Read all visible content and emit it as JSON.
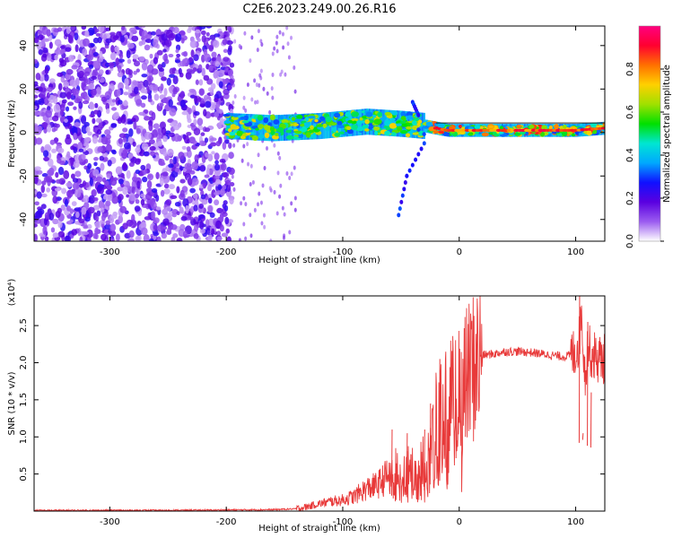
{
  "title": "C2E6.2023.249.00.26.R16",
  "chart_data": [
    {
      "type": "heatmap",
      "xlabel": "Height of straight line (km)",
      "ylabel": "Frequency (Hz)",
      "xlim": [
        -365,
        125
      ],
      "ylim": [
        -50,
        49
      ],
      "xticks": [
        -300,
        -200,
        -100,
        0,
        100
      ],
      "xtick_labels": [
        "-300",
        "-200",
        "-100",
        "0",
        "100"
      ],
      "yticks": [
        -40,
        -20,
        0,
        20,
        40
      ],
      "ytick_labels": [
        "-40",
        "-20",
        "0",
        "20",
        "40"
      ],
      "colorbar": {
        "label": "Normalized spectral amplitude",
        "range": [
          0.0,
          1.0
        ],
        "ticks": [
          0.0,
          0.2,
          0.4,
          0.6,
          0.8
        ],
        "tick_labels": [
          "0.0",
          "0.2",
          "0.4",
          "0.6",
          "0.8"
        ],
        "colormap": [
          "#ffffff",
          "#9b5cf0",
          "#5a00e0",
          "#1010ff",
          "#00a8ff",
          "#00e6d2",
          "#00e000",
          "#a0e000",
          "#ffd000",
          "#ff7000",
          "#ff0030",
          "#ff0080"
        ]
      },
      "regions": [
        {
          "name": "noise",
          "x_range": [
            -365,
            -195
          ],
          "freq_range": [
            -50,
            49
          ],
          "amplitude": [
            0.05,
            0.25
          ]
        },
        {
          "name": "signal-band",
          "x_range": [
            -200,
            125
          ],
          "center_freq": [
            3,
            2,
            3,
            5,
            4,
            3,
            1,
            1,
            1,
            1,
            2
          ],
          "center_x": [
            -200,
            -160,
            -120,
            -80,
            -50,
            -30,
            -10,
            20,
            60,
            100,
            125
          ],
          "amplitude": [
            0.3,
            0.9
          ]
        }
      ],
      "features": [
        {
          "x": [
            -30,
            -45,
            -52
          ],
          "freq": [
            -5,
            -20,
            -38
          ]
        },
        {
          "x": [
            -40,
            -35
          ],
          "freq": [
            14,
            8
          ]
        }
      ]
    },
    {
      "type": "line",
      "xlabel": "Height of straight line (km)",
      "ylabel": "SNR (10 * v/v)",
      "y_multiplier": "(x10⁴)",
      "xlim": [
        -365,
        125
      ],
      "ylim": [
        0,
        2.9
      ],
      "xticks": [
        -300,
        -200,
        -100,
        0,
        100
      ],
      "xtick_labels": [
        "-300",
        "-200",
        "-100",
        "0",
        "100"
      ],
      "yticks": [
        0.5,
        1.0,
        1.5,
        2.0,
        2.5
      ],
      "ytick_labels": [
        "0.5",
        "1.0",
        "1.5",
        "2.0",
        "2.5"
      ],
      "color": "#e83a3a",
      "series": [
        {
          "name": "SNR",
          "x": [
            -365,
            -300,
            -250,
            -200,
            -160,
            -140,
            -130,
            -120,
            -110,
            -100,
            -90,
            -80,
            -70,
            -60,
            -50,
            -40,
            -30,
            -25,
            -20,
            -15,
            -10,
            -5,
            0,
            10,
            20,
            30,
            40,
            50,
            60,
            70,
            80,
            90,
            95,
            100,
            103,
            105,
            108,
            110,
            115,
            120,
            125
          ],
          "y": [
            0.01,
            0.01,
            0.01,
            0.015,
            0.02,
            0.03,
            0.06,
            0.1,
            0.13,
            0.15,
            0.2,
            0.3,
            0.35,
            0.5,
            0.6,
            0.55,
            0.7,
            0.9,
            1.2,
            1.4,
            1.5,
            1.55,
            1.6,
            1.9,
            2.1,
            2.12,
            2.15,
            2.15,
            2.14,
            2.12,
            2.1,
            2.08,
            2.1,
            2.15,
            2.3,
            2.7,
            1.8,
            2.2,
            2.1,
            2.05,
            2.05
          ]
        }
      ],
      "spikes": [
        {
          "x": -58,
          "y": 1.1
        },
        {
          "x": -45,
          "y": 1.05
        },
        {
          "x": -30,
          "y": 1.1
        },
        {
          "x": -25,
          "y": 1.45
        },
        {
          "x": -17,
          "y": 2.05
        },
        {
          "x": -12,
          "y": 1.9
        },
        {
          "x": 103,
          "y": 2.9
        },
        {
          "x": 106,
          "y": 1.05
        },
        {
          "x": 110,
          "y": 2.55
        },
        {
          "x": 113,
          "y": 1.6
        }
      ]
    }
  ]
}
